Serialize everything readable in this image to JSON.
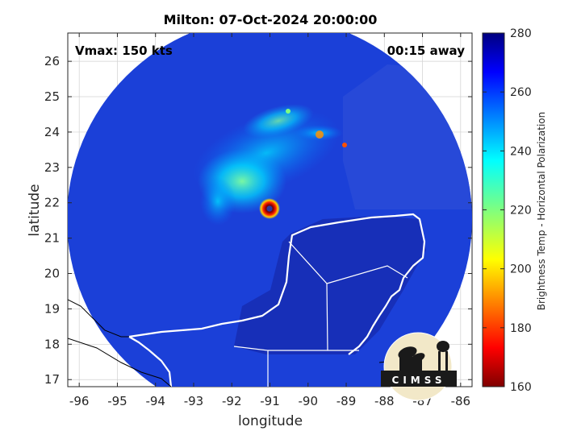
{
  "title": "Milton: 07-Oct-2024 20:00:00",
  "annotations": {
    "vmax": "Vmax: 150 kts",
    "away": "00:15 away"
  },
  "axes": {
    "xlabel": "longitude",
    "ylabel": "latitude",
    "xlim": [
      -96.3,
      -85.7
    ],
    "ylim": [
      16.8,
      26.8
    ],
    "xticks": [
      "-96",
      "-95",
      "-94",
      "-93",
      "-92",
      "-91",
      "-90",
      "-89",
      "-88",
      "-87",
      "-86"
    ],
    "xtick_values": [
      -96,
      -95,
      -94,
      -93,
      -92,
      -91,
      -90,
      -89,
      -88,
      -87,
      -86
    ],
    "yticks": [
      "17",
      "18",
      "19",
      "20",
      "21",
      "22",
      "23",
      "24",
      "25",
      "26"
    ],
    "ytick_values": [
      17,
      18,
      19,
      20,
      21,
      22,
      23,
      24,
      25,
      26
    ]
  },
  "colorbar": {
    "label": "Brightness Temp - Horizontal Polarization",
    "ticks": [
      "160",
      "180",
      "200",
      "220",
      "240",
      "260",
      "280"
    ],
    "tick_values": [
      160,
      180,
      200,
      220,
      240,
      260,
      280
    ],
    "range": [
      160,
      280
    ],
    "colormap": "jet"
  },
  "storm_center": {
    "lon": -90.9,
    "lat": 21.8
  },
  "logo": {
    "text": "CIMSS"
  },
  "colors": {
    "background": "#ffffff",
    "swath_base": "#1a3fd8",
    "coastline": "#ffffff",
    "border": "#000000"
  }
}
